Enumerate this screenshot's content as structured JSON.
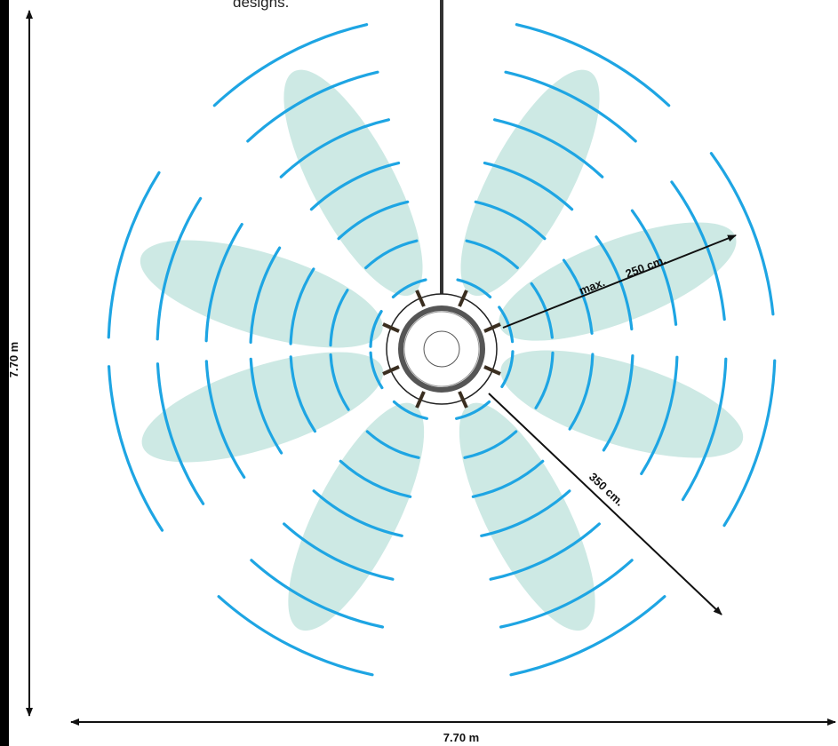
{
  "header": {
    "caption": "designs."
  },
  "labels": {
    "max": "max.",
    "range": "250 cm.",
    "radius": "350 cm.",
    "height": "7.70 m",
    "width": "7.70 m"
  }
}
